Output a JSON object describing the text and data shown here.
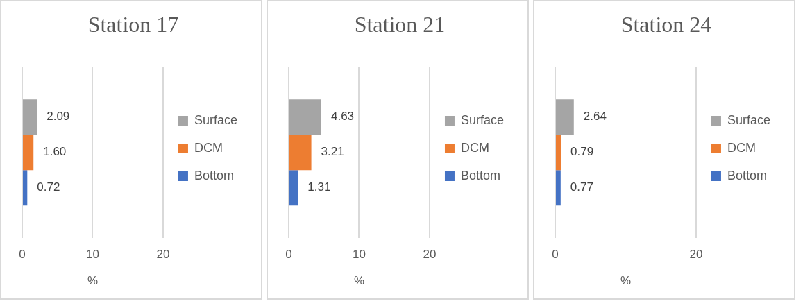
{
  "chart_data": [
    {
      "type": "bar",
      "title": "Station 17",
      "orientation": "horizontal",
      "categories": [
        null
      ],
      "xlabel": "%",
      "xlim": [
        0,
        20
      ],
      "xticks": [
        0,
        10,
        20
      ],
      "grid": "x",
      "legend": "right",
      "tick_labels": "x",
      "series": [
        {
          "name": "Surface",
          "color": "#a5a5a5",
          "values": [
            2.09
          ],
          "value_labels": [
            "2.09"
          ]
        },
        {
          "name": "DCM",
          "color": "#ed7d31",
          "values": [
            1.6
          ],
          "value_labels": [
            "1.60"
          ]
        },
        {
          "name": "Bottom",
          "color": "#4472c4",
          "values": [
            0.72
          ],
          "value_labels": [
            "0.72"
          ]
        }
      ]
    },
    {
      "type": "bar",
      "title": "Station 21",
      "orientation": "horizontal",
      "categories": [
        null
      ],
      "xlabel": "%",
      "xlim": [
        0,
        20
      ],
      "xticks": [
        0,
        10,
        20
      ],
      "grid": "x",
      "legend": "right",
      "tick_labels": "x",
      "series": [
        {
          "name": "Surface",
          "color": "#a5a5a5",
          "values": [
            4.63
          ],
          "value_labels": [
            "4.63"
          ]
        },
        {
          "name": "DCM",
          "color": "#ed7d31",
          "values": [
            3.21
          ],
          "value_labels": [
            "3.21"
          ]
        },
        {
          "name": "Bottom",
          "color": "#4472c4",
          "values": [
            1.31
          ],
          "value_labels": [
            "1.31"
          ]
        }
      ]
    },
    {
      "type": "bar",
      "title": "Station 24",
      "orientation": "horizontal",
      "categories": [
        null
      ],
      "xlabel": "%",
      "xlim": [
        0,
        20
      ],
      "xticks": [
        0,
        20
      ],
      "grid": "x",
      "legend": "right",
      "tick_labels": "x",
      "series": [
        {
          "name": "Surface",
          "color": "#a5a5a5",
          "values": [
            2.64
          ],
          "value_labels": [
            "2.64"
          ]
        },
        {
          "name": "DCM",
          "color": "#ed7d31",
          "values": [
            0.79
          ],
          "value_labels": [
            "0.79"
          ]
        },
        {
          "name": "Bottom",
          "color": "#4472c4",
          "values": [
            0.77
          ],
          "value_labels": [
            "0.77"
          ]
        }
      ]
    }
  ]
}
